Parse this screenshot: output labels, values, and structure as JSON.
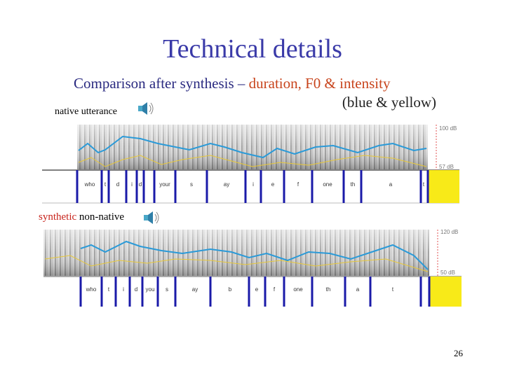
{
  "title": "Technical details",
  "subtitle": {
    "lead": "Comparison after synthesis –",
    "highlight": "duration, F0 & intensity",
    "note": "(blue & yellow)"
  },
  "native": {
    "label": "native utterance",
    "scale": [
      "100 dB",
      "57 dB"
    ],
    "segments": [
      "who",
      "t",
      "d",
      "i",
      "d",
      "your",
      "s",
      "ay",
      "i",
      "e",
      "f",
      "one",
      "th",
      "a",
      "t"
    ]
  },
  "synthetic": {
    "label_highlight": "synthetic",
    "label": "non-native",
    "scale": [
      "120 dB",
      "50 dB"
    ],
    "segments": [
      "who",
      "t",
      "i",
      "d",
      "you",
      "s",
      "ay",
      "b",
      "e",
      "f",
      "one",
      "th",
      "a",
      "t"
    ]
  },
  "page_number": "26"
}
